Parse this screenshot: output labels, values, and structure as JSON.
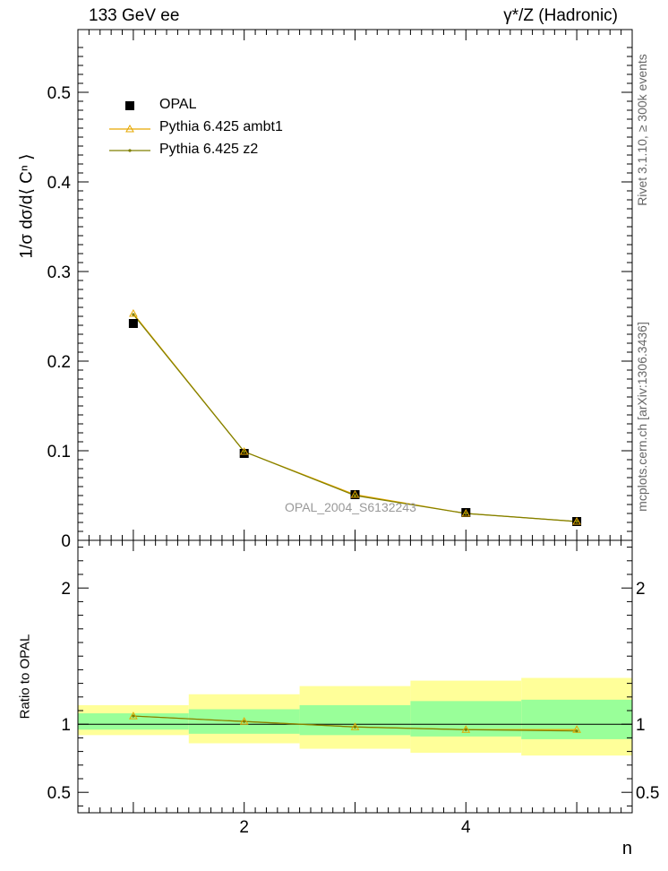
{
  "header": {
    "left": "133 GeV ee",
    "right": "γ*/Z (Hadronic)"
  },
  "side_text": {
    "rivet": "Rivet 3.1.10, ≥ 300k events",
    "mcplots": "mcplots.cern.ch [arXiv:1306.3436]"
  },
  "watermark": "OPAL_2004_S6132243",
  "colors": {
    "opal": "#000000",
    "ambt1": "#e6a800",
    "z2": "#7f7f00",
    "band_inner": "#99ff99",
    "band_outer": "#ffff99"
  },
  "legend": {
    "opal": "OPAL",
    "ambt1": "Pythia 6.425 ambt1",
    "z2": "Pythia 6.425 z2"
  },
  "chart_data": [
    {
      "type": "line",
      "panel": "main",
      "ylabel": "1/σ dσ/d⟨ Cⁿ ⟩",
      "xlim": [
        0.5,
        5.5
      ],
      "ylim": [
        0,
        0.57
      ],
      "yticks": [
        0,
        0.1,
        0.2,
        0.3,
        0.4,
        0.5
      ],
      "ytick_labels": [
        "0",
        "0.1",
        "0.2",
        "0.3",
        "0.4",
        "0.5"
      ],
      "x": [
        1,
        2,
        3,
        4,
        5
      ],
      "series": [
        {
          "name": "OPAL",
          "values": [
            0.242,
            0.097,
            0.051,
            0.031,
            0.021
          ],
          "marker": "square"
        },
        {
          "name": "Pythia 6.425 ambt1",
          "values": [
            0.253,
            0.099,
            0.051,
            0.03,
            0.021
          ],
          "marker": "triangle"
        },
        {
          "name": "Pythia 6.425 z2",
          "values": [
            0.252,
            0.099,
            0.05,
            0.03,
            0.021
          ],
          "marker": "dot"
        }
      ],
      "legend_position": "top-left"
    },
    {
      "type": "line",
      "panel": "ratio",
      "xlabel": "n",
      "ylabel": "Ratio to OPAL",
      "xlim": [
        0.5,
        5.5
      ],
      "ylim": [
        0.35,
        2.35
      ],
      "yticks": [
        0.5,
        1,
        2
      ],
      "ytick_labels": [
        "0.5",
        "1",
        "2"
      ],
      "xticks": [
        2,
        4
      ],
      "xtick_labels": [
        "2",
        "4"
      ],
      "x": [
        1,
        2,
        3,
        4,
        5
      ],
      "bands": {
        "inner": [
          [
            0.96,
            1.08
          ],
          [
            0.93,
            1.11
          ],
          [
            0.92,
            1.14
          ],
          [
            0.91,
            1.17
          ],
          [
            0.89,
            1.18
          ]
        ],
        "outer": [
          [
            0.92,
            1.14
          ],
          [
            0.86,
            1.22
          ],
          [
            0.82,
            1.28
          ],
          [
            0.79,
            1.32
          ],
          [
            0.77,
            1.34
          ]
        ]
      },
      "series": [
        {
          "name": "Pythia 6.425 ambt1",
          "values": [
            1.06,
            1.02,
            0.98,
            0.96,
            0.96
          ]
        },
        {
          "name": "Pythia 6.425 z2",
          "values": [
            1.06,
            1.02,
            0.98,
            0.96,
            0.95
          ]
        }
      ]
    }
  ]
}
